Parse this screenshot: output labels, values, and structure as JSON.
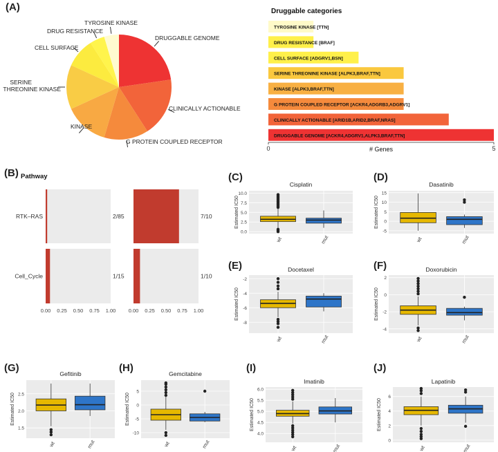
{
  "panel_letters": {
    "A": "(A)",
    "B": "(B)",
    "C": "(C)",
    "D": "(D)",
    "E": "(E)",
    "F": "(F)",
    "G": "(G)",
    "H": "(H)",
    "I": "(I)",
    "J": "(J)"
  },
  "colors": {
    "wt": "#E6B800",
    "mut": "#2E75C8",
    "panel_bg": "#EBEBEB",
    "grid": "#FFFFFF",
    "pathway_bar": "#C13B2E"
  },
  "chart_data": [
    {
      "id": "pie",
      "type": "pie",
      "title": "",
      "slices": [
        {
          "label": "DRUGGABLE GENOME",
          "value": 5,
          "color": "#EE3333"
        },
        {
          "label": "CLINICALLY ACTIONABLE",
          "value": 4,
          "color": "#F2643A"
        },
        {
          "label": "G PROTEIN COUPLED RECEPTOR",
          "value": 3,
          "color": "#F58A3C"
        },
        {
          "label": "KINASE",
          "value": 3,
          "color": "#F8A943"
        },
        {
          "label": "SERINE THREONINE KINASE",
          "value": 3,
          "color": "#F9CC45"
        },
        {
          "label": "CELL SURFACE",
          "value": 2,
          "color": "#FCEB3F"
        },
        {
          "label": "DRUG RESISTANCE",
          "value": 1,
          "color": "#FFF44C"
        },
        {
          "label": "TYROSINE KINASE",
          "value": 1,
          "color": "#FFFBD0"
        }
      ]
    },
    {
      "id": "druggable",
      "type": "bar",
      "title": "Druggable categories",
      "xlabel": "# Genes",
      "xlim": [
        0,
        5
      ],
      "ticks": [
        "0",
        "5"
      ],
      "bars": [
        {
          "label": "TYROSINE KINASE [TTN]",
          "value": 1,
          "color": "#FFFAC8"
        },
        {
          "label": "DRUG RESISTANCE [BRAF]",
          "value": 1,
          "color": "#FFF04A"
        },
        {
          "label": "CELL SURFACE [ADGRV1,BSN]",
          "value": 2,
          "color": "#FFF04A"
        },
        {
          "label": "SERINE THREONINE KINASE [ALPK3,BRAF,TTN]",
          "value": 3,
          "color": "#FAC83E"
        },
        {
          "label": "KINASE [ALPK3,BRAF,TTN]",
          "value": 3,
          "color": "#F8B043"
        },
        {
          "label": "G PROTEIN COUPLED RECEPTOR [ACKR4,ADGRB3,ADGRV1]",
          "value": 3,
          "color": "#F58A3C"
        },
        {
          "label": "CLINICALLY ACTIONABLE [ARID1B,ARID2,BRAF,NRAS]",
          "value": 4,
          "color": "#F2643A"
        },
        {
          "label": "DRUGGABLE GENOME [ACKR4,ADGRV1,ALPK3,BRAF,TTN]",
          "value": 5,
          "color": "#EE3333"
        }
      ]
    },
    {
      "id": "pathway",
      "type": "bar",
      "title": "Pathway",
      "rows": [
        "RTK–RAS",
        "Cell_Cycle"
      ],
      "xticks": [
        "0.00",
        "0.25",
        "0.50",
        "0.75",
        "1.00"
      ],
      "xlim": [
        0,
        1
      ],
      "cells": [
        {
          "row": 0,
          "col": 0,
          "fraction": 0.0235,
          "label": "2/85"
        },
        {
          "row": 0,
          "col": 1,
          "fraction": 0.7,
          "label": "7/10"
        },
        {
          "row": 1,
          "col": 0,
          "fraction": 0.0667,
          "label": "1/15"
        },
        {
          "row": 1,
          "col": 1,
          "fraction": 0.1,
          "label": "1/10"
        }
      ]
    },
    {
      "id": "C",
      "type": "box",
      "title": "Cisplatin",
      "ylabel": "Estimated IC50",
      "ylim": [
        -0.5,
        10.6
      ],
      "yticks": [
        "0.0",
        "2.5",
        "5.0",
        "7.5",
        "10.0"
      ],
      "ytick_values": [
        0,
        2.5,
        5,
        7.5,
        10
      ],
      "categories": [
        "wt",
        "mut"
      ],
      "boxes": [
        {
          "q1": 2.6,
          "median": 3.2,
          "q3": 4.0,
          "low": 0.9,
          "high": 6.0,
          "outliers": [
            6.3,
            6.6,
            6.9,
            7.2,
            7.5,
            7.8,
            8.1,
            8.4,
            8.7,
            9.0,
            9.3,
            9.6,
            0.6,
            0.3,
            0.0
          ]
        },
        {
          "q1": 2.2,
          "median": 3.0,
          "q3": 3.5,
          "low": 1.0,
          "high": 5.5,
          "outliers": []
        }
      ]
    },
    {
      "id": "D",
      "type": "box",
      "title": "Dasatinib",
      "ylabel": "Estimated IC50",
      "ylim": [
        -6.5,
        16
      ],
      "yticks": [
        "-5",
        "0",
        "5",
        "10",
        "15"
      ],
      "ytick_values": [
        -5,
        0,
        5,
        10,
        15
      ],
      "categories": [
        "wt",
        "mut"
      ],
      "boxes": [
        {
          "q1": -0.8,
          "median": 1.6,
          "q3": 4.6,
          "low": -5.0,
          "high": 14.6,
          "outliers": []
        },
        {
          "q1": -1.8,
          "median": 1.0,
          "q3": 2.4,
          "low": -3.5,
          "high": 3.5,
          "outliers": [
            10.0,
            11.2
          ]
        }
      ]
    },
    {
      "id": "E",
      "type": "box",
      "title": "Docetaxel",
      "ylabel": "Estimated IC50",
      "ylim": [
        -9.5,
        -1.5
      ],
      "yticks": [
        "-8",
        "-6",
        "-4",
        "-2"
      ],
      "ytick_values": [
        -8,
        -6,
        -4,
        -2
      ],
      "categories": [
        "wt",
        "mut"
      ],
      "boxes": [
        {
          "q1": -6.0,
          "median": -5.4,
          "q3": -4.9,
          "low": -7.3,
          "high": -3.8,
          "outliers": [
            -3.4,
            -3.0,
            -2.5,
            -2.0,
            -7.6,
            -7.9,
            -8.2,
            -8.7
          ]
        },
        {
          "q1": -5.9,
          "median": -4.8,
          "q3": -4.4,
          "low": -6.5,
          "high": -4.0,
          "outliers": []
        }
      ]
    },
    {
      "id": "F",
      "type": "box",
      "title": "Doxorubicin",
      "ylabel": "Estimated IC50",
      "ylim": [
        -4.5,
        2.3
      ],
      "yticks": [
        "-4",
        "-2",
        "0",
        "2"
      ],
      "ytick_values": [
        -4,
        -2,
        0,
        2
      ],
      "categories": [
        "wt",
        "mut"
      ],
      "boxes": [
        {
          "q1": -2.3,
          "median": -1.8,
          "q3": -1.3,
          "low": -3.6,
          "high": -0.2,
          "outliers": [
            0.1,
            0.4,
            0.7,
            1.0,
            1.3,
            1.6,
            1.9,
            -3.9,
            -4.2
          ]
        },
        {
          "q1": -2.4,
          "median": -2.1,
          "q3": -1.6,
          "low": -3.0,
          "high": -1.4,
          "outliers": [
            -0.3
          ]
        }
      ]
    },
    {
      "id": "G",
      "type": "box",
      "title": "Gefitinib",
      "ylabel": "Estimated IC50",
      "ylim": [
        1.2,
        2.9
      ],
      "yticks": [
        "1.5",
        "2.0",
        "2.5"
      ],
      "ytick_values": [
        1.5,
        2.0,
        2.5
      ],
      "categories": [
        "wt",
        "mut"
      ],
      "boxes": [
        {
          "q1": 2.0,
          "median": 2.17,
          "q3": 2.35,
          "low": 1.55,
          "high": 2.8,
          "outliers": [
            1.45,
            1.38,
            1.3
          ]
        },
        {
          "q1": 2.03,
          "median": 2.18,
          "q3": 2.43,
          "low": 1.85,
          "high": 2.8,
          "outliers": []
        }
      ]
    },
    {
      "id": "H",
      "type": "box",
      "title": "Gemcitabine",
      "ylabel": "Estimated IC50",
      "ylim": [
        -12,
        9
      ],
      "yticks": [
        "-10",
        "-5",
        "0",
        "5"
      ],
      "ytick_values": [
        -10,
        -5,
        0,
        5
      ],
      "categories": [
        "wt",
        "mut"
      ],
      "boxes": [
        {
          "q1": -5.5,
          "median": -3.5,
          "q3": -1.5,
          "low": -9.0,
          "high": 3.0,
          "outliers": [
            3.5,
            4.5,
            5.5,
            6.5,
            7.5,
            8.0,
            -10.0,
            -11.0
          ]
        },
        {
          "q1": -5.8,
          "median": -4.5,
          "q3": -3.2,
          "low": -6.2,
          "high": -2.5,
          "outliers": [
            5.0
          ]
        }
      ]
    },
    {
      "id": "I",
      "type": "box",
      "title": "Imatinib",
      "ylabel": "Estimated IC50",
      "ylim": [
        3.6,
        6.1
      ],
      "yticks": [
        "4.0",
        "4.5",
        "5.0",
        "5.5",
        "6.0"
      ],
      "ytick_values": [
        4.0,
        4.5,
        5.0,
        5.5,
        6.0
      ],
      "categories": [
        "wt",
        "mut"
      ],
      "boxes": [
        {
          "q1": 4.78,
          "median": 4.9,
          "q3": 5.05,
          "low": 4.45,
          "high": 5.45,
          "outliers": [
            5.55,
            5.65,
            5.75,
            5.85,
            5.95,
            4.35,
            4.25,
            4.15,
            4.05,
            3.95,
            3.85
          ]
        },
        {
          "q1": 4.88,
          "median": 5.02,
          "q3": 5.2,
          "low": 4.5,
          "high": 5.6,
          "outliers": []
        }
      ]
    },
    {
      "id": "J",
      "type": "box",
      "title": "Lapatinib",
      "ylabel": "Estimated IC50",
      "ylim": [
        -0.3,
        7.3
      ],
      "yticks": [
        "0",
        "2",
        "4",
        "6"
      ],
      "ytick_values": [
        0,
        2,
        4,
        6
      ],
      "categories": [
        "wt",
        "mut"
      ],
      "boxes": [
        {
          "q1": 3.5,
          "median": 4.1,
          "q3": 4.6,
          "low": 2.0,
          "high": 6.0,
          "outliers": [
            6.4,
            6.8,
            7.1,
            1.6,
            1.2,
            0.8,
            0.5,
            0.2
          ]
        },
        {
          "q1": 3.7,
          "median": 4.3,
          "q3": 4.8,
          "low": 2.4,
          "high": 6.0,
          "outliers": [
            6.6,
            6.9,
            1.9
          ]
        }
      ]
    }
  ]
}
